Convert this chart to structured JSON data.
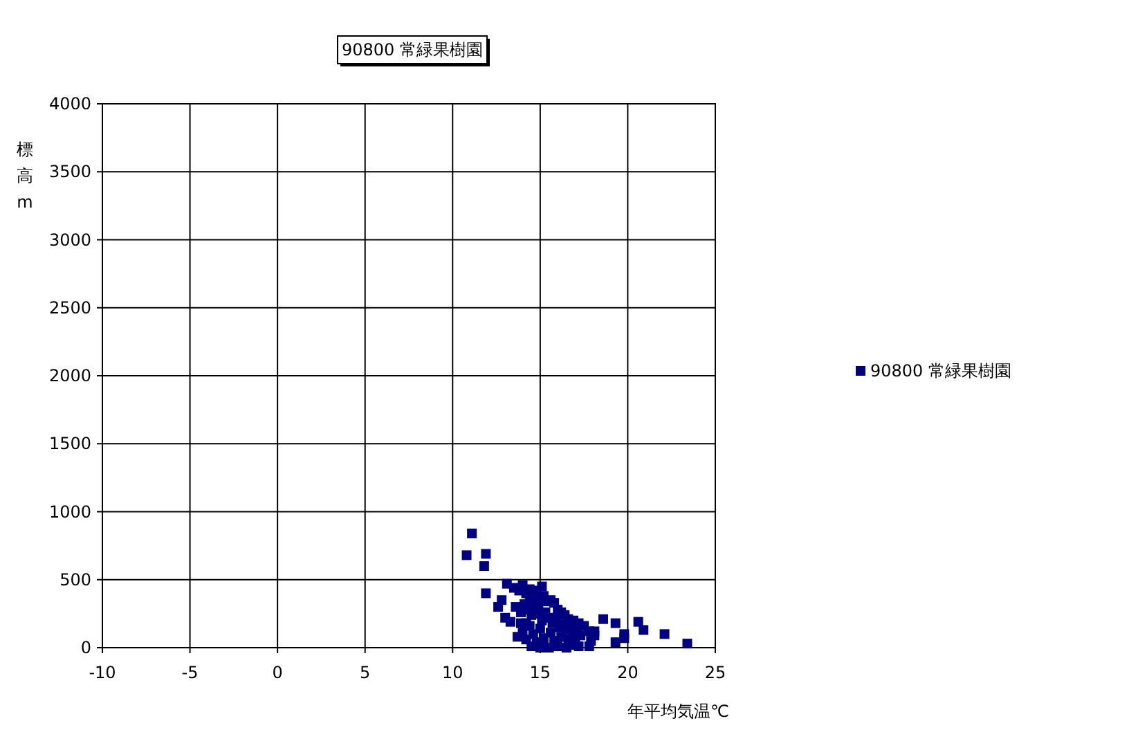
{
  "chart_data": {
    "type": "scatter",
    "title": "90800 常緑果樹園",
    "xlabel": "年平均気温℃",
    "ylabel": "標高m",
    "xlim": [
      -10,
      25
    ],
    "ylim": [
      0,
      4000
    ],
    "xticks": [
      -10,
      -5,
      0,
      5,
      10,
      15,
      20,
      25
    ],
    "yticks": [
      0,
      500,
      1000,
      1500,
      2000,
      2500,
      3000,
      3500,
      4000
    ],
    "grid": true,
    "legend": "right",
    "marker": "square",
    "series": [
      {
        "name": "90800 常緑果樹園",
        "color": "#000080",
        "x": [
          11.1,
          10.8,
          11.9,
          11.8,
          11.9,
          13.1,
          12.8,
          12.6,
          13.0,
          13.3,
          18.6,
          19.3,
          19.3,
          19.8,
          19.8,
          20.6,
          20.9,
          22.1,
          23.4,
          18.1,
          17.8,
          13.5,
          13.8,
          14.0,
          14.2,
          14.4,
          14.6,
          14.8,
          15.1,
          15.3,
          15.6,
          15.8,
          16.0,
          16.2,
          16.4,
          16.6,
          16.9,
          17.2,
          17.5,
          17.8,
          18.1,
          13.6,
          13.9,
          14.1,
          14.3,
          14.5,
          14.7,
          14.9,
          15.1,
          15.3,
          15.5,
          15.7,
          15.9,
          16.1,
          16.3,
          16.5,
          16.7,
          16.9,
          17.1,
          17.3,
          13.7,
          14.0,
          14.2,
          14.4,
          14.6,
          14.8,
          15.0,
          15.2,
          15.6,
          15.8,
          16.0,
          16.2,
          16.6,
          16.8,
          17.0,
          17.2,
          17.9,
          14.5,
          15.0,
          15.5,
          16.5,
          14.2,
          13.9,
          15.2,
          14.4,
          14.9
        ],
        "values": [
          840,
          680,
          690,
          600,
          400,
          470,
          350,
          300,
          220,
          190,
          210,
          180,
          40,
          100,
          70,
          190,
          130,
          100,
          30,
          120,
          10,
          440,
          420,
          460,
          400,
          430,
          420,
          380,
          450,
          340,
          350,
          330,
          280,
          260,
          240,
          210,
          200,
          180,
          160,
          120,
          90,
          300,
          260,
          320,
          280,
          240,
          300,
          250,
          200,
          260,
          220,
          180,
          210,
          150,
          170,
          130,
          150,
          110,
          130,
          90,
          80,
          120,
          60,
          160,
          100,
          40,
          140,
          70,
          110,
          50,
          10,
          80,
          60,
          20,
          50,
          10,
          50,
          10,
          0,
          0,
          0,
          180,
          180,
          380,
          350,
          330
        ]
      }
    ]
  }
}
